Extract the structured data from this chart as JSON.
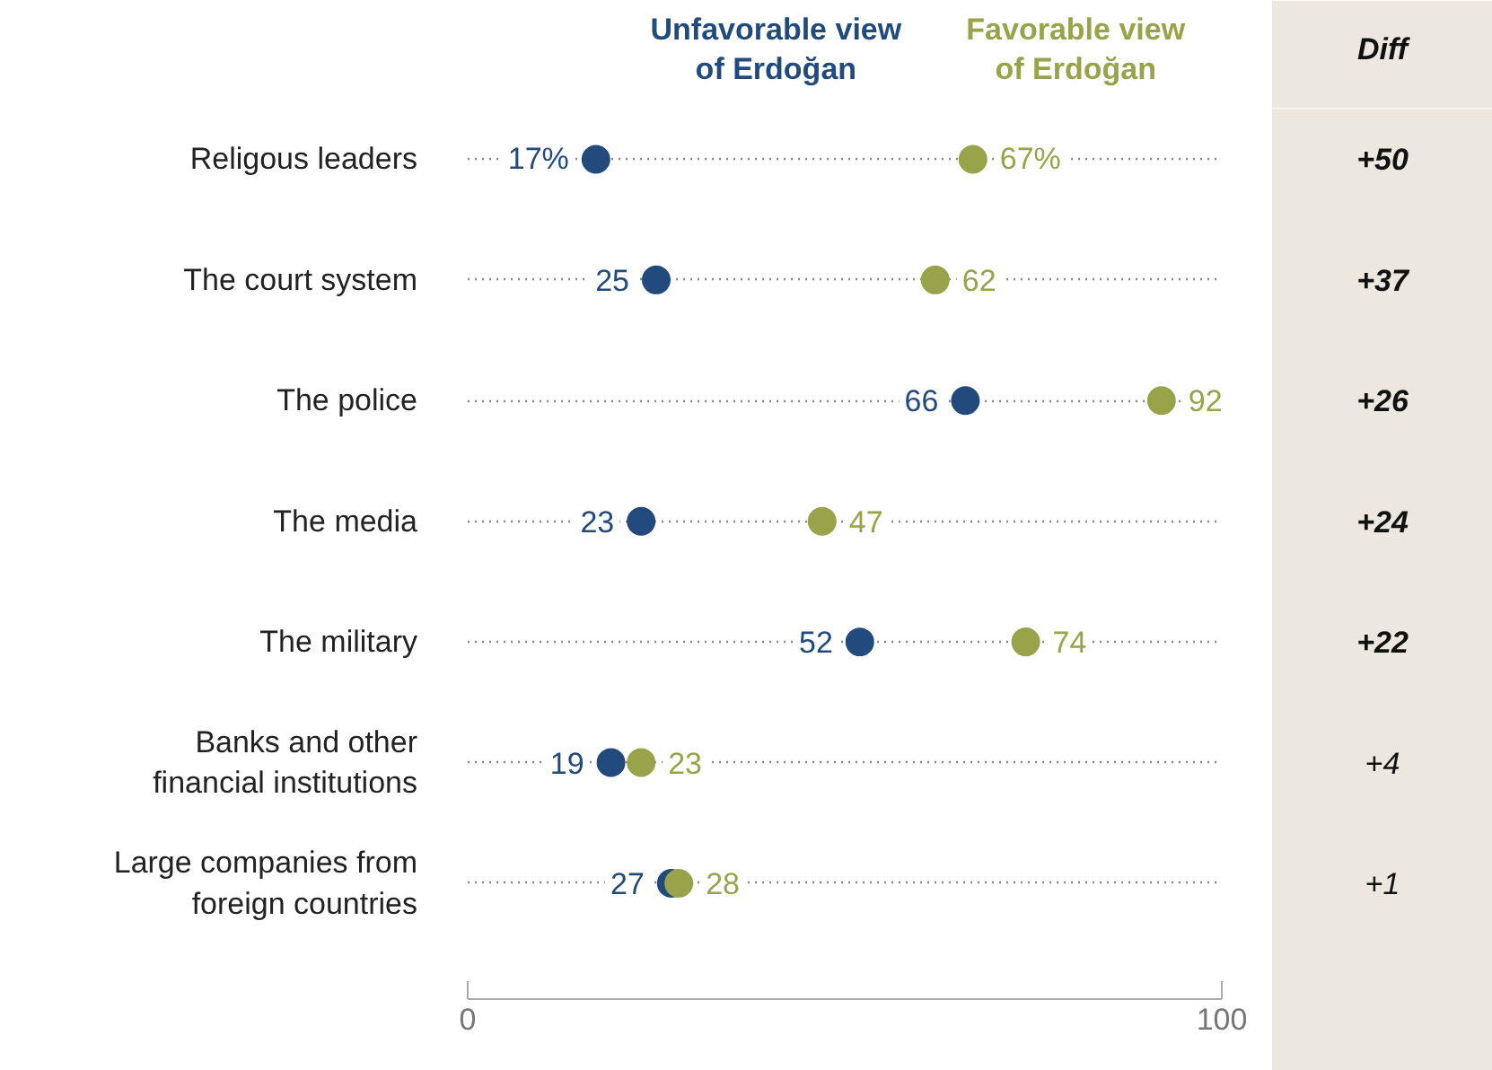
{
  "chart_data": {
    "type": "scatter",
    "orientation": "horizontal",
    "categories": [
      "Religous leaders",
      "The court system",
      "The police",
      "The media",
      "The military",
      "Banks and other\nfinancial institutions",
      "Large companies from\nforeign countries"
    ],
    "series": [
      {
        "name": "Unfavorable view\nof Erdoğan",
        "color": "#234a7c",
        "values": [
          17,
          25,
          66,
          23,
          52,
          19,
          27
        ],
        "value_labels": [
          "17%",
          "25",
          "66",
          "23",
          "52",
          "19",
          "27"
        ]
      },
      {
        "name": "Favorable view\nof Erdoğan",
        "color": "#98a34a",
        "values": [
          67,
          62,
          92,
          47,
          74,
          23,
          28
        ],
        "value_labels": [
          "67%",
          "62",
          "92",
          "47",
          "74",
          "23",
          "28"
        ]
      }
    ],
    "xlim": [
      0,
      100
    ],
    "xticks": [
      0,
      100
    ],
    "grid": "y",
    "marker": "circle",
    "legend": false,
    "annotations": [
      "Diff",
      "+50",
      "+37",
      "+26",
      "+24",
      "+22",
      "+4",
      "+1"
    ]
  }
}
